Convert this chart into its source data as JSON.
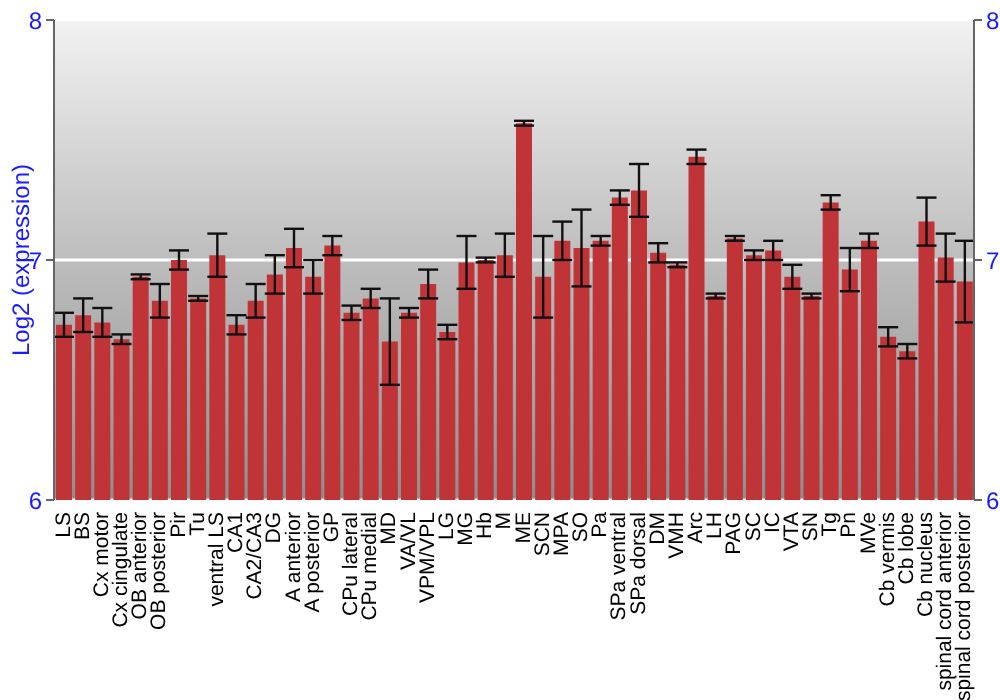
{
  "chart_data": {
    "type": "bar",
    "ylabel": "Log2 (expression)",
    "categories": [
      "LS",
      "BS",
      "Cx motor",
      "Cx cingulate",
      "OB anterior",
      "OB posterior",
      "Pir",
      "Tu",
      "ventral LS",
      "CA1",
      "CA2/CA3",
      "DG",
      "A anterior",
      "A posterior",
      "GP",
      "CPu lateral",
      "CPu medial",
      "MD",
      "VA/VL",
      "VPM/VPL",
      "LG",
      "MG",
      "Hb",
      "M",
      "ME",
      "SCN",
      "MPA",
      "SO",
      "Pa",
      "SPa ventral",
      "SPa dorsal",
      "DM",
      "VMH",
      "Arc",
      "LH",
      "PAG",
      "SC",
      "IC",
      "VTA",
      "SN",
      "Tg",
      "Pn",
      "MVe",
      "Cb vermis",
      "Cb lobe",
      "Cb nucleus",
      "spinal cord anterior",
      "spinal cord posterior"
    ],
    "values": [
      6.73,
      6.77,
      6.74,
      6.67,
      6.93,
      6.83,
      7.0,
      6.84,
      7.02,
      6.73,
      6.83,
      6.94,
      7.05,
      6.93,
      7.06,
      6.78,
      6.84,
      6.66,
      6.78,
      6.9,
      6.7,
      6.99,
      7.0,
      7.02,
      7.57,
      6.93,
      7.08,
      7.05,
      7.08,
      7.26,
      7.29,
      7.03,
      6.98,
      7.43,
      6.85,
      7.09,
      7.02,
      7.04,
      6.93,
      6.85,
      7.24,
      6.96,
      7.08,
      6.68,
      6.62,
      7.16,
      7.01,
      6.91
    ],
    "errors": [
      0.05,
      0.07,
      0.06,
      0.02,
      0.01,
      0.07,
      0.04,
      0.01,
      0.09,
      0.04,
      0.07,
      0.08,
      0.08,
      0.07,
      0.04,
      0.03,
      0.04,
      0.18,
      0.02,
      0.06,
      0.03,
      0.11,
      0.01,
      0.09,
      0.01,
      0.17,
      0.08,
      0.16,
      0.02,
      0.03,
      0.11,
      0.04,
      0.01,
      0.03,
      0.01,
      0.01,
      0.02,
      0.04,
      0.05,
      0.01,
      0.03,
      0.09,
      0.03,
      0.04,
      0.03,
      0.1,
      0.1,
      0.17
    ],
    "color": "#c03438",
    "ylim": [
      6,
      8
    ],
    "yticks": [
      6,
      7,
      8
    ],
    "y2lim": [
      6,
      8
    ],
    "y2ticks": [
      6,
      7,
      8
    ],
    "grid": "y"
  }
}
